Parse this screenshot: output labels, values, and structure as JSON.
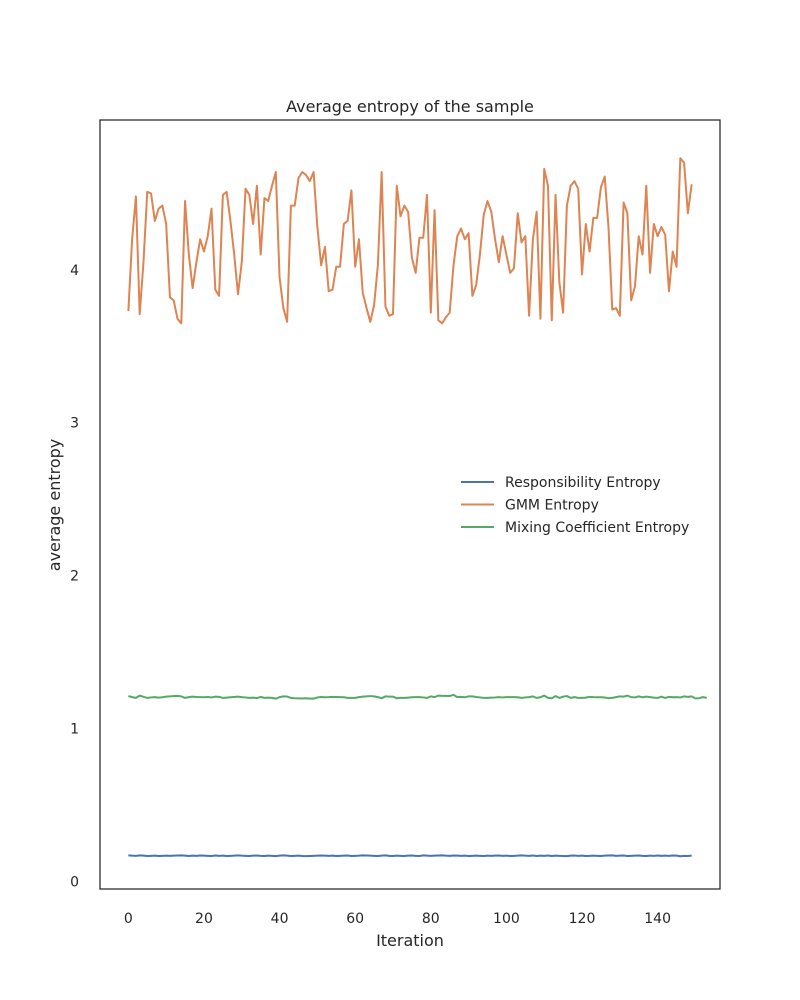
{
  "chart_data": {
    "type": "line",
    "title": "Average entropy of the sample",
    "xlabel": "Iteration",
    "ylabel": "average entropy",
    "xlim": [
      -7.5,
      156.5
    ],
    "ylim": [
      -0.05,
      4.98
    ],
    "xticks": [
      0,
      20,
      40,
      60,
      80,
      100,
      120,
      140
    ],
    "yticks": [
      0,
      1,
      2,
      3,
      4
    ],
    "grid": false,
    "legend_position": "center-right",
    "series": [
      {
        "name": "Responsibility Entropy",
        "color": "#4c72b0",
        "values": [
          0.17,
          0.168,
          0.167,
          0.17,
          0.168,
          0.166,
          0.167,
          0.168,
          0.166,
          0.167,
          0.168,
          0.167,
          0.168,
          0.169,
          0.17,
          0.168,
          0.166,
          0.168,
          0.167,
          0.169,
          0.168,
          0.167,
          0.166,
          0.169,
          0.167,
          0.168,
          0.166,
          0.167,
          0.168,
          0.17,
          0.168,
          0.167,
          0.166,
          0.168,
          0.169,
          0.167,
          0.166,
          0.168,
          0.167,
          0.165,
          0.168,
          0.17,
          0.168,
          0.166,
          0.167,
          0.168,
          0.166,
          0.165,
          0.166,
          0.167,
          0.168,
          0.169,
          0.168,
          0.167,
          0.168,
          0.166,
          0.167,
          0.168,
          0.169,
          0.166,
          0.167,
          0.168,
          0.17,
          0.169,
          0.168,
          0.167,
          0.166,
          0.168,
          0.17,
          0.167,
          0.166,
          0.168,
          0.167,
          0.166,
          0.168,
          0.169,
          0.167,
          0.166,
          0.17,
          0.168,
          0.167,
          0.168,
          0.169,
          0.17,
          0.168,
          0.167,
          0.169,
          0.168,
          0.167,
          0.168,
          0.166,
          0.167,
          0.168,
          0.167,
          0.166,
          0.168,
          0.167,
          0.168,
          0.169,
          0.167,
          0.168,
          0.166,
          0.167,
          0.168,
          0.17,
          0.168,
          0.167,
          0.169,
          0.166,
          0.168,
          0.167,
          0.169,
          0.166,
          0.168,
          0.167,
          0.166,
          0.165,
          0.168,
          0.169,
          0.167,
          0.168,
          0.166,
          0.167,
          0.168,
          0.167,
          0.166,
          0.168,
          0.169,
          0.17,
          0.167,
          0.168,
          0.169,
          0.166,
          0.167,
          0.168,
          0.169,
          0.167,
          0.166,
          0.168,
          0.167,
          0.169,
          0.167,
          0.168,
          0.167,
          0.169,
          0.168,
          0.164,
          0.167,
          0.166,
          0.168
        ]
      },
      {
        "name": "GMM Entropy",
        "color": "#dd8452",
        "values": [
          3.73,
          4.2,
          4.48,
          3.71,
          4.05,
          4.51,
          4.5,
          4.32,
          4.4,
          4.42,
          4.3,
          3.82,
          3.8,
          3.68,
          3.65,
          4.45,
          4.1,
          3.88,
          4.05,
          4.2,
          4.12,
          4.22,
          4.4,
          3.87,
          3.83,
          4.49,
          4.51,
          4.32,
          4.1,
          3.84,
          4.05,
          4.53,
          4.49,
          4.3,
          4.55,
          4.1,
          4.47,
          4.45,
          4.55,
          4.64,
          3.95,
          3.75,
          3.66,
          4.42,
          4.42,
          4.6,
          4.64,
          4.62,
          4.58,
          4.64,
          4.28,
          4.03,
          4.15,
          3.86,
          3.87,
          4.02,
          4.02,
          4.3,
          4.32,
          4.52,
          4.02,
          4.2,
          3.85,
          3.75,
          3.66,
          3.77,
          4.03,
          4.64,
          3.76,
          3.7,
          3.71,
          4.55,
          4.35,
          4.42,
          4.38,
          4.08,
          3.98,
          4.21,
          4.21,
          4.49,
          3.72,
          4.39,
          3.67,
          3.65,
          3.69,
          3.72,
          4.03,
          4.22,
          4.27,
          4.2,
          4.24,
          3.83,
          3.9,
          4.1,
          4.36,
          4.45,
          4.38,
          4.2,
          4.05,
          4.22,
          4.1,
          3.98,
          4.01,
          4.37,
          4.18,
          4.22,
          3.7,
          4.2,
          4.38,
          3.68,
          4.66,
          4.55,
          3.67,
          4.49,
          3.92,
          3.72,
          4.42,
          4.55,
          4.58,
          4.53,
          3.97,
          4.3,
          4.12,
          4.34,
          4.34,
          4.54,
          4.61,
          4.28,
          3.74,
          3.75,
          3.7,
          4.44,
          4.37,
          3.8,
          3.89,
          4.22,
          4.1,
          4.55,
          3.98,
          4.3,
          4.22,
          4.28,
          4.23,
          3.86,
          4.12,
          4.02,
          4.73,
          4.7,
          4.37,
          4.56
        ]
      },
      {
        "name": "Mixing Coefficient Entropy",
        "color": "#55a868",
        "values": [
          1.212,
          1.205,
          1.2,
          1.215,
          1.207,
          1.2,
          1.203,
          1.205,
          1.202,
          1.204,
          1.208,
          1.21,
          1.212,
          1.213,
          1.21,
          1.2,
          1.205,
          1.208,
          1.206,
          1.205,
          1.204,
          1.206,
          1.203,
          1.208,
          1.207,
          1.2,
          1.202,
          1.204,
          1.206,
          1.208,
          1.205,
          1.203,
          1.2,
          1.202,
          1.199,
          1.206,
          1.2,
          1.202,
          1.2,
          1.195,
          1.205,
          1.21,
          1.209,
          1.2,
          1.198,
          1.197,
          1.196,
          1.198,
          1.195,
          1.195,
          1.203,
          1.206,
          1.204,
          1.205,
          1.207,
          1.206,
          1.205,
          1.204,
          1.2,
          1.2,
          1.2,
          1.205,
          1.208,
          1.21,
          1.212,
          1.21,
          1.205,
          1.198,
          1.21,
          1.208,
          1.208,
          1.198,
          1.2,
          1.2,
          1.202,
          1.204,
          1.205,
          1.205,
          1.203,
          1.2,
          1.21,
          1.205,
          1.215,
          1.213,
          1.213,
          1.212,
          1.22,
          1.205,
          1.207,
          1.204,
          1.21,
          1.21,
          1.206,
          1.203,
          1.2,
          1.2,
          1.202,
          1.203,
          1.205,
          1.203,
          1.205,
          1.205,
          1.205,
          1.204,
          1.2,
          1.203,
          1.205,
          1.21,
          1.2,
          1.204,
          1.215,
          1.2,
          1.198,
          1.212,
          1.2,
          1.208,
          1.212,
          1.2,
          1.205,
          1.2,
          1.2,
          1.202,
          1.207,
          1.205,
          1.204,
          1.204,
          1.203,
          1.198,
          1.2,
          1.205,
          1.21,
          1.208,
          1.215,
          1.205,
          1.203,
          1.21,
          1.204,
          1.208,
          1.205,
          1.202,
          1.2,
          1.208,
          1.2,
          1.207,
          1.204,
          1.205,
          1.203,
          1.21,
          1.207,
          1.21,
          1.197,
          1.198,
          1.205,
          1.2
        ]
      }
    ]
  }
}
